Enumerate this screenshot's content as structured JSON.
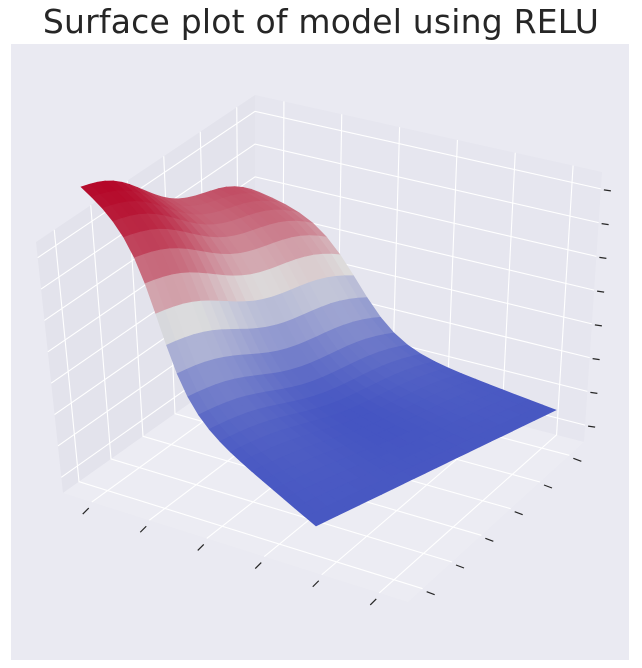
{
  "chart_data": {
    "title": "Surface plot of model using RELU",
    "type": "surface3d",
    "colormap": "coolwarm",
    "grid": true,
    "tick_labels_visible": false,
    "axes": {
      "x_ticks": 6,
      "y_ticks": 6,
      "z_ticks": 8
    },
    "colors": {
      "background": "#eaeaf2",
      "pane_left": "#e3e3ec",
      "pane_back": "#e6e6ef",
      "pane_floor": "#ececf3",
      "grid": "#ffffff",
      "tick": "#262626",
      "cool": "#3b4cc0",
      "neutral": "#dddddd",
      "warm": "#b40426"
    }
  }
}
